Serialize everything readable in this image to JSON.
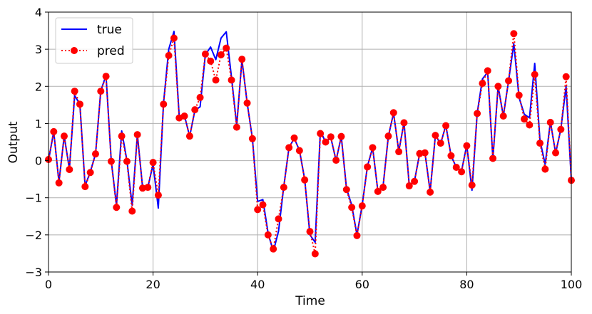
{
  "chart_data": {
    "type": "line",
    "xlabel": "Time",
    "ylabel": "Output",
    "xlim": [
      0,
      100
    ],
    "ylim": [
      -3,
      4
    ],
    "xticks": [
      "0",
      "20",
      "40",
      "60",
      "80",
      "100"
    ],
    "yticks": [
      "−3",
      "−2",
      "−1",
      "0",
      "1",
      "2",
      "3",
      "4"
    ],
    "grid": true,
    "legend_position": "top-left",
    "series": [
      {
        "name": "true",
        "style": "solid",
        "color": "#0000ff",
        "x": [
          0,
          1,
          2,
          3,
          4,
          5,
          6,
          7,
          8,
          9,
          10,
          11,
          12,
          13,
          14,
          15,
          16,
          17,
          18,
          19,
          20,
          21,
          22,
          23,
          24,
          25,
          26,
          27,
          28,
          29,
          30,
          31,
          32,
          33,
          34,
          35,
          36,
          37,
          38,
          39,
          40,
          41,
          42,
          43,
          44,
          45,
          46,
          47,
          48,
          49,
          50,
          51,
          52,
          53,
          54,
          55,
          56,
          57,
          58,
          59,
          60,
          61,
          62,
          63,
          64,
          65,
          66,
          67,
          68,
          69,
          70,
          71,
          72,
          73,
          74,
          75,
          76,
          77,
          78,
          79,
          80,
          81,
          82,
          83,
          84,
          85,
          86,
          87,
          88,
          89,
          90,
          91,
          92,
          93,
          94,
          95,
          96,
          97,
          98,
          99,
          100
        ],
        "values": [
          0.0,
          0.78,
          -0.58,
          0.66,
          -0.22,
          1.75,
          1.52,
          -0.68,
          -0.3,
          0.18,
          1.88,
          2.3,
          0.0,
          -1.2,
          0.8,
          0.0,
          -1.2,
          0.7,
          -0.72,
          -0.72,
          -0.1,
          -1.28,
          1.55,
          3.0,
          3.48,
          1.2,
          1.22,
          0.65,
          1.35,
          1.45,
          2.85,
          3.06,
          2.72,
          3.3,
          3.47,
          2.25,
          0.95,
          2.72,
          1.55,
          0.6,
          -1.1,
          -1.05,
          -1.95,
          -2.45,
          -1.9,
          -0.7,
          0.35,
          0.6,
          0.28,
          -0.5,
          -2.0,
          -2.2,
          0.8,
          0.5,
          0.62,
          0.0,
          0.65,
          -0.75,
          -1.2,
          -2.0,
          -1.2,
          -0.15,
          0.35,
          -0.82,
          -0.68,
          0.65,
          1.28,
          0.25,
          1.03,
          -0.66,
          -0.55,
          0.2,
          0.22,
          -0.83,
          0.68,
          0.45,
          0.95,
          0.13,
          -0.18,
          -0.28,
          0.42,
          -0.8,
          1.28,
          2.2,
          2.38,
          0.05,
          2.0,
          1.2,
          2.15,
          3.15,
          1.7,
          1.25,
          1.15,
          2.62,
          0.55,
          -0.1,
          1.05,
          0.2,
          0.85,
          2.0,
          -0.52
        ]
      },
      {
        "name": "pred",
        "style": "dotted-markers",
        "color": "#ff0000",
        "x": [
          0,
          1,
          2,
          3,
          4,
          5,
          6,
          7,
          8,
          9,
          10,
          11,
          12,
          13,
          14,
          15,
          16,
          17,
          18,
          19,
          20,
          21,
          22,
          23,
          24,
          25,
          26,
          27,
          28,
          29,
          30,
          31,
          32,
          33,
          34,
          35,
          36,
          37,
          38,
          39,
          40,
          41,
          42,
          43,
          44,
          45,
          46,
          47,
          48,
          49,
          50,
          51,
          52,
          53,
          54,
          55,
          56,
          57,
          58,
          59,
          60,
          61,
          62,
          63,
          64,
          65,
          66,
          67,
          68,
          69,
          70,
          71,
          72,
          73,
          74,
          75,
          76,
          77,
          78,
          79,
          80,
          81,
          82,
          83,
          84,
          85,
          86,
          87,
          88,
          89,
          90,
          91,
          92,
          93,
          94,
          95,
          96,
          97,
          98,
          99,
          100
        ],
        "values": [
          0.03,
          0.78,
          -0.6,
          0.66,
          -0.24,
          1.87,
          1.52,
          -0.7,
          -0.32,
          0.18,
          1.87,
          2.27,
          -0.02,
          -1.26,
          0.66,
          -0.02,
          -1.36,
          0.7,
          -0.74,
          -0.72,
          -0.05,
          -0.93,
          1.52,
          2.83,
          3.3,
          1.15,
          1.2,
          0.66,
          1.37,
          1.7,
          2.87,
          2.68,
          2.17,
          2.85,
          3.03,
          2.17,
          0.9,
          2.73,
          1.55,
          0.59,
          -1.32,
          -1.19,
          -2.0,
          -2.38,
          -1.57,
          -0.72,
          0.35,
          0.61,
          0.27,
          -0.52,
          -1.91,
          -2.51,
          0.73,
          0.5,
          0.64,
          0.01,
          0.65,
          -0.78,
          -1.26,
          -2.02,
          -1.22,
          -0.17,
          0.35,
          -0.83,
          -0.72,
          0.66,
          1.29,
          0.24,
          1.02,
          -0.68,
          -0.56,
          0.19,
          0.21,
          -0.85,
          0.68,
          0.47,
          0.94,
          0.13,
          -0.18,
          -0.3,
          0.4,
          -0.66,
          1.27,
          2.08,
          2.42,
          0.06,
          2.0,
          1.2,
          2.15,
          3.42,
          1.76,
          1.12,
          0.96,
          2.32,
          0.47,
          -0.23,
          1.03,
          0.21,
          0.84,
          2.26,
          -0.53
        ]
      }
    ]
  }
}
